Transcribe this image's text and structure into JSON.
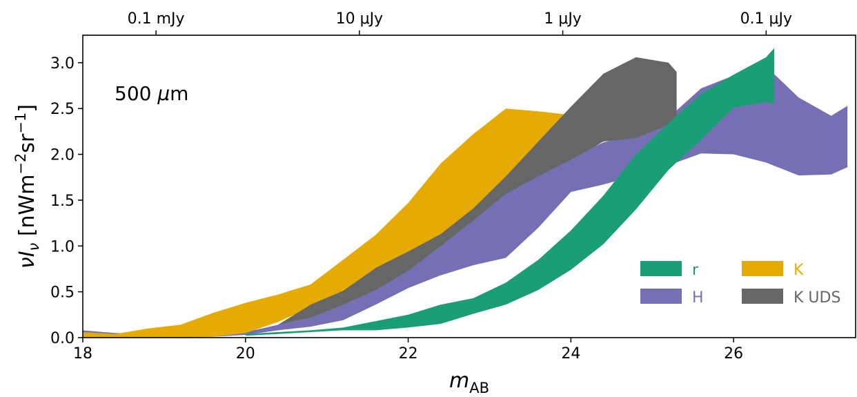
{
  "chart_data": {
    "type": "area",
    "annotation_parts": [
      "500 ",
      "μ",
      "m"
    ],
    "xlabel_parts": [
      "m",
      "AB"
    ],
    "ylabel_parts": [
      "ν",
      "I",
      "ν",
      " [nWm",
      "−2",
      "sr",
      "−1",
      "]"
    ],
    "xlim": [
      18,
      27.5
    ],
    "ylim": [
      0,
      3.3
    ],
    "xticks": [
      "18",
      "20",
      "22",
      "24",
      "26"
    ],
    "xtick_values": [
      18,
      20,
      22,
      24,
      26
    ],
    "yticks": [
      "0.0",
      "0.5",
      "1.0",
      "1.5",
      "2.0",
      "2.5",
      "3.0"
    ],
    "ytick_values": [
      0.0,
      0.5,
      1.0,
      1.5,
      2.0,
      2.5,
      3.0
    ],
    "top_axis": {
      "ticks": [
        "0.1 mJy",
        "10 μJy",
        "1 μJy",
        "0.1 μJy"
      ],
      "positions_mAB": [
        18.9,
        21.4,
        23.9,
        26.4
      ]
    },
    "legend": {
      "placement": "lower-right",
      "columns": 2
    },
    "series": [
      {
        "name": "H",
        "color": "#7570b3",
        "upper": [
          [
            18,
            0.08
          ],
          [
            18.4,
            0.05
          ],
          [
            19,
            0.04
          ],
          [
            19.6,
            0.04
          ],
          [
            20,
            0.06
          ],
          [
            20.4,
            0.14
          ],
          [
            20.8,
            0.25
          ],
          [
            21.2,
            0.4
          ],
          [
            21.6,
            0.6
          ],
          [
            22,
            0.8
          ],
          [
            22.4,
            1.08
          ],
          [
            22.8,
            1.35
          ],
          [
            23.2,
            1.65
          ],
          [
            23.6,
            1.82
          ],
          [
            24.0,
            1.97
          ],
          [
            24.4,
            2.13
          ],
          [
            24.8,
            2.22
          ],
          [
            25.2,
            2.4
          ],
          [
            25.6,
            2.72
          ],
          [
            26.0,
            2.86
          ],
          [
            26.4,
            2.96
          ],
          [
            26.8,
            2.62
          ],
          [
            27.2,
            2.42
          ],
          [
            27.4,
            2.53
          ]
        ],
        "lower": [
          [
            27.4,
            1.86
          ],
          [
            27.2,
            1.78
          ],
          [
            26.8,
            1.77
          ],
          [
            26.4,
            1.91
          ],
          [
            26.0,
            2.0
          ],
          [
            25.6,
            2.01
          ],
          [
            25.2,
            1.88
          ],
          [
            24.8,
            1.77
          ],
          [
            24.4,
            1.67
          ],
          [
            24.0,
            1.59
          ],
          [
            23.6,
            1.2
          ],
          [
            23.2,
            0.87
          ],
          [
            22.8,
            0.79
          ],
          [
            22.4,
            0.68
          ],
          [
            22.0,
            0.54
          ],
          [
            21.6,
            0.36
          ],
          [
            21.2,
            0.19
          ],
          [
            20.8,
            0.12
          ],
          [
            20.4,
            0.08
          ],
          [
            20,
            0.03
          ],
          [
            19.6,
            0.01
          ],
          [
            19,
            0.0
          ],
          [
            18.4,
            0.0
          ],
          [
            18,
            0.02
          ]
        ]
      },
      {
        "name": "K",
        "color": "#e6ab02",
        "upper": [
          [
            18,
            0.06
          ],
          [
            18.4,
            0.04
          ],
          [
            18.8,
            0.1
          ],
          [
            19.2,
            0.14
          ],
          [
            19.6,
            0.27
          ],
          [
            20,
            0.38
          ],
          [
            20.4,
            0.47
          ],
          [
            20.8,
            0.58
          ],
          [
            21.2,
            0.85
          ],
          [
            21.6,
            1.12
          ],
          [
            22,
            1.47
          ],
          [
            22.4,
            1.9
          ],
          [
            22.8,
            2.22
          ],
          [
            23.2,
            2.5
          ],
          [
            23.6,
            2.47
          ],
          [
            24.0,
            2.43
          ]
        ],
        "lower": [
          [
            24.0,
            2.15
          ],
          [
            23.6,
            2.01
          ],
          [
            23.2,
            1.73
          ],
          [
            22.8,
            1.39
          ],
          [
            22.4,
            1.11
          ],
          [
            22.0,
            0.93
          ],
          [
            21.6,
            0.73
          ],
          [
            21.2,
            0.5
          ],
          [
            20.8,
            0.33
          ],
          [
            20.4,
            0.17
          ],
          [
            20,
            0.05
          ],
          [
            19.6,
            0.01
          ],
          [
            19.2,
            0.0
          ],
          [
            18.8,
            0.0
          ],
          [
            18.4,
            0.0
          ],
          [
            18,
            0.0
          ]
        ]
      },
      {
        "name": "K UDS",
        "color": "#666666",
        "upper": [
          [
            20.4,
            0.14
          ],
          [
            20.8,
            0.36
          ],
          [
            21.2,
            0.51
          ],
          [
            21.6,
            0.76
          ],
          [
            22.0,
            0.94
          ],
          [
            22.4,
            1.13
          ],
          [
            22.8,
            1.41
          ],
          [
            23.2,
            1.76
          ],
          [
            23.6,
            2.14
          ],
          [
            24.0,
            2.52
          ],
          [
            24.4,
            2.88
          ],
          [
            24.8,
            3.06
          ],
          [
            25.2,
            3.0
          ],
          [
            25.3,
            2.9
          ]
        ],
        "lower": [
          [
            25.3,
            2.4
          ],
          [
            25.2,
            2.32
          ],
          [
            24.8,
            2.18
          ],
          [
            24.4,
            2.14
          ],
          [
            24.0,
            1.94
          ],
          [
            23.6,
            1.76
          ],
          [
            23.2,
            1.57
          ],
          [
            22.8,
            1.28
          ],
          [
            22.4,
            1.0
          ],
          [
            22.0,
            0.73
          ],
          [
            21.6,
            0.52
          ],
          [
            21.2,
            0.36
          ],
          [
            20.8,
            0.22
          ],
          [
            20.4,
            0.14
          ]
        ]
      },
      {
        "name": "r",
        "color": "#1b9e77",
        "upper": [
          [
            20.0,
            0.04
          ],
          [
            20.4,
            0.06
          ],
          [
            20.8,
            0.08
          ],
          [
            21.2,
            0.11
          ],
          [
            21.6,
            0.18
          ],
          [
            22.0,
            0.25
          ],
          [
            22.4,
            0.36
          ],
          [
            22.8,
            0.43
          ],
          [
            23.2,
            0.6
          ],
          [
            23.6,
            0.85
          ],
          [
            24.0,
            1.17
          ],
          [
            24.4,
            1.55
          ],
          [
            24.8,
            2.0
          ],
          [
            25.2,
            2.34
          ],
          [
            25.6,
            2.66
          ],
          [
            26.0,
            2.87
          ],
          [
            26.4,
            3.06
          ],
          [
            26.5,
            3.16
          ]
        ],
        "lower": [
          [
            26.5,
            2.55
          ],
          [
            26.4,
            2.57
          ],
          [
            26.0,
            2.51
          ],
          [
            25.6,
            2.16
          ],
          [
            25.2,
            1.83
          ],
          [
            24.8,
            1.4
          ],
          [
            24.4,
            1.02
          ],
          [
            24.0,
            0.74
          ],
          [
            23.6,
            0.52
          ],
          [
            23.2,
            0.36
          ],
          [
            22.8,
            0.26
          ],
          [
            22.4,
            0.15
          ],
          [
            22.0,
            0.11
          ],
          [
            21.6,
            0.08
          ],
          [
            21.2,
            0.08
          ],
          [
            20.8,
            0.06
          ],
          [
            20.4,
            0.04
          ],
          [
            20.0,
            0.02
          ]
        ]
      }
    ]
  }
}
